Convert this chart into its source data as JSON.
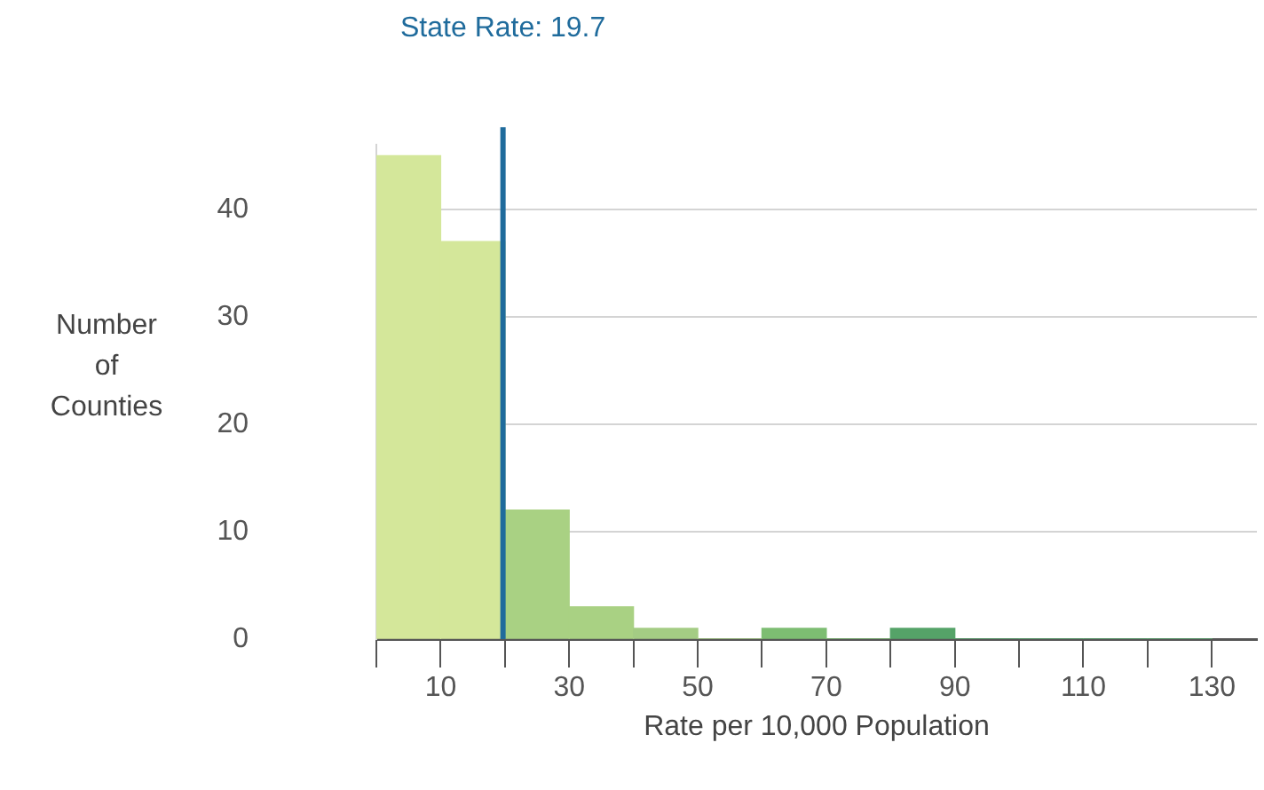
{
  "chart_data": {
    "type": "histogram",
    "xlabel": "Rate per 10,000 Population",
    "ylabel": "Number of Counties",
    "bins": [
      0,
      10,
      20,
      30,
      40,
      50,
      60,
      70,
      80,
      90,
      100,
      110,
      120,
      130
    ],
    "values": [
      45,
      37,
      12,
      3,
      1,
      0,
      1,
      0,
      1,
      0,
      0,
      0,
      0
    ],
    "colors": [
      "#d4e79a",
      "#d4e79a",
      "#a9d183",
      "#a9d183",
      "#a4cc84",
      "#a4cc84",
      "#7dbd72",
      "#7dbd72",
      "#55a368",
      "#55a368",
      "#55a368",
      "#55a368",
      "#55a368"
    ],
    "xlim": [
      0,
      137
    ],
    "xticks": [
      {
        "value": 0,
        "label": null
      },
      10,
      {
        "value": 20,
        "label": null
      },
      30,
      {
        "value": 40,
        "label": null
      },
      50,
      {
        "value": 60,
        "label": null
      },
      70,
      {
        "value": 80,
        "label": null
      },
      90,
      {
        "value": 100,
        "label": null
      },
      110,
      {
        "value": 120,
        "label": null
      },
      130
    ],
    "yticks": [
      {
        "value": 0,
        "label": "0"
      },
      10,
      20,
      30,
      40
    ],
    "ylim": [
      0,
      46
    ],
    "grid": "y",
    "legend": false,
    "ref_lines": [
      {
        "axis": "x",
        "value": 19.7,
        "label": "State Rate: 19.7",
        "color": "#1f6b9c"
      }
    ]
  }
}
